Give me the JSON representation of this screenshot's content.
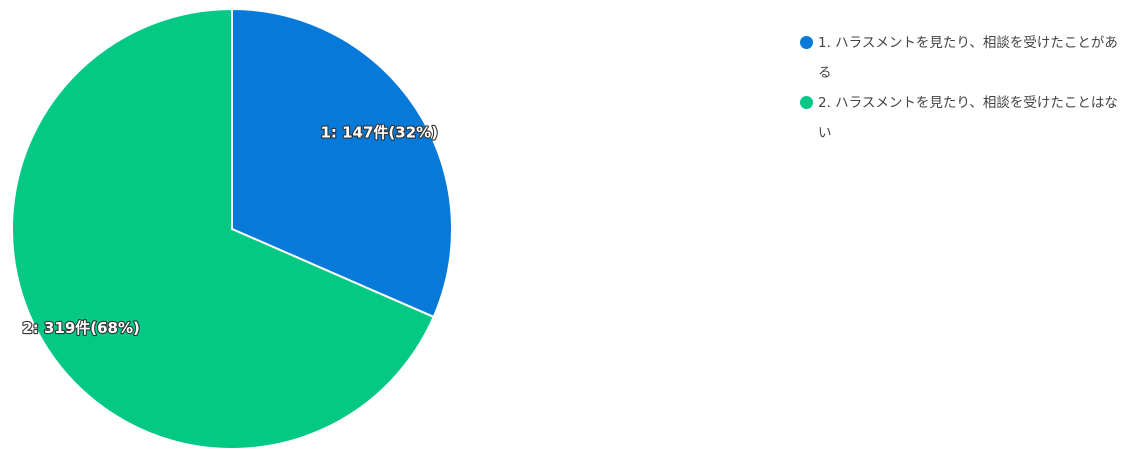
{
  "chart_data": {
    "type": "pie",
    "slices": [
      {
        "name": "1. ハラスメントを見たり、相談を受けたことがある",
        "value": 147,
        "label": "1: 147件(32%)",
        "color": "#0679D9"
      },
      {
        "name": "2. ハラスメントを見たり、相談を受けたことはない",
        "value": 319,
        "label": "2: 319件(68%)",
        "color": "#04C985"
      }
    ],
    "legend_position": "top-right"
  }
}
